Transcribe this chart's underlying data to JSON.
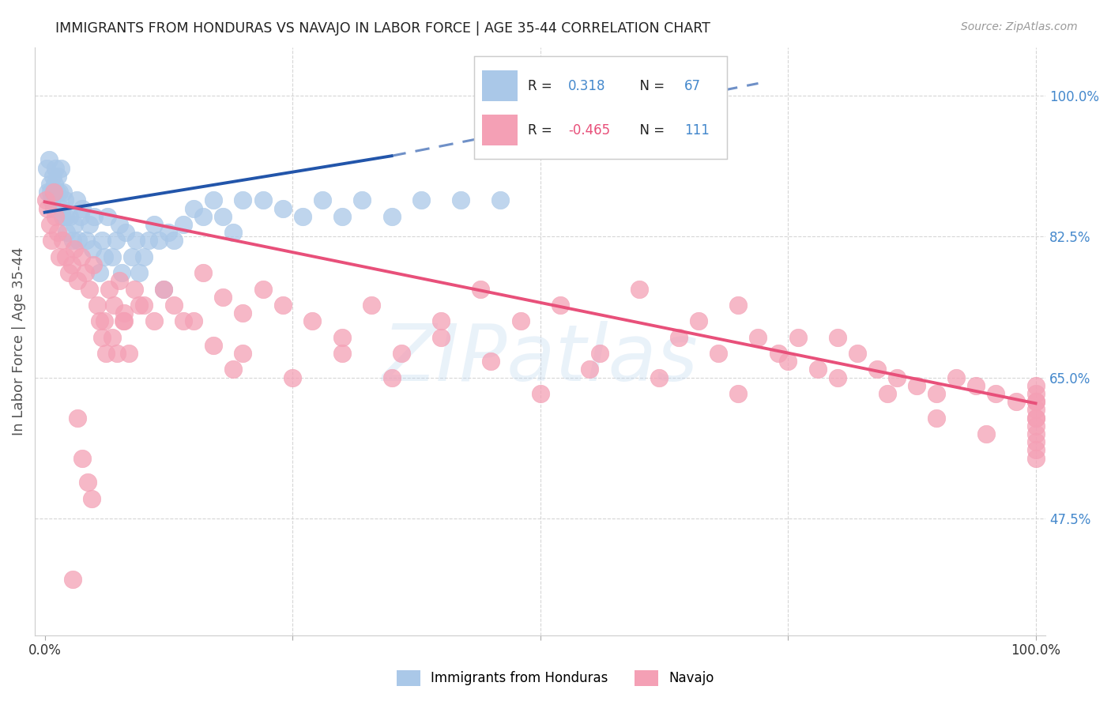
{
  "title": "IMMIGRANTS FROM HONDURAS VS NAVAJO IN LABOR FORCE | AGE 35-44 CORRELATION CHART",
  "source": "Source: ZipAtlas.com",
  "ylabel": "In Labor Force | Age 35-44",
  "xlim": [
    -0.01,
    1.01
  ],
  "ylim": [
    0.33,
    1.06
  ],
  "ytick_positions": [
    0.475,
    0.65,
    0.825,
    1.0
  ],
  "ytick_labels": [
    "47.5%",
    "65.0%",
    "82.5%",
    "100.0%"
  ],
  "watermark": "ZIPatlas",
  "legend_blue_r": "R =   0.318",
  "legend_blue_n": "N = 67",
  "legend_pink_r": "R = -0.465",
  "legend_pink_n": "N = 111",
  "blue_color": "#aac8e8",
  "pink_color": "#f4a0b5",
  "blue_line_color": "#2255aa",
  "pink_line_color": "#e8507a",
  "grid_color": "#cccccc",
  "background_color": "#ffffff",
  "title_color": "#222222",
  "axis_label_color": "#555555",
  "ytick_label_color": "#4488cc",
  "source_color": "#999999",
  "blue_scatter_x": [
    0.002,
    0.003,
    0.004,
    0.005,
    0.006,
    0.007,
    0.008,
    0.009,
    0.01,
    0.011,
    0.012,
    0.013,
    0.015,
    0.016,
    0.017,
    0.018,
    0.019,
    0.02,
    0.021,
    0.022,
    0.025,
    0.028,
    0.03,
    0.032,
    0.034,
    0.036,
    0.038,
    0.042,
    0.045,
    0.048,
    0.05,
    0.055,
    0.058,
    0.06,
    0.063,
    0.068,
    0.072,
    0.075,
    0.078,
    0.082,
    0.088,
    0.092,
    0.095,
    0.1,
    0.105,
    0.11,
    0.115,
    0.12,
    0.125,
    0.13,
    0.14,
    0.15,
    0.16,
    0.17,
    0.18,
    0.19,
    0.2,
    0.22,
    0.24,
    0.26,
    0.28,
    0.3,
    0.32,
    0.35,
    0.38,
    0.42,
    0.46
  ],
  "blue_scatter_y": [
    0.91,
    0.88,
    0.92,
    0.89,
    0.88,
    0.87,
    0.9,
    0.86,
    0.89,
    0.91,
    0.88,
    0.9,
    0.88,
    0.91,
    0.86,
    0.85,
    0.88,
    0.87,
    0.85,
    0.83,
    0.85,
    0.82,
    0.84,
    0.87,
    0.82,
    0.85,
    0.86,
    0.82,
    0.84,
    0.81,
    0.85,
    0.78,
    0.82,
    0.8,
    0.85,
    0.8,
    0.82,
    0.84,
    0.78,
    0.83,
    0.8,
    0.82,
    0.78,
    0.8,
    0.82,
    0.84,
    0.82,
    0.76,
    0.83,
    0.82,
    0.84,
    0.86,
    0.85,
    0.87,
    0.85,
    0.83,
    0.87,
    0.87,
    0.86,
    0.85,
    0.87,
    0.85,
    0.87,
    0.85,
    0.87,
    0.87,
    0.87
  ],
  "pink_scatter_x": [
    0.001,
    0.003,
    0.005,
    0.007,
    0.009,
    0.011,
    0.013,
    0.015,
    0.018,
    0.021,
    0.024,
    0.027,
    0.03,
    0.033,
    0.037,
    0.041,
    0.045,
    0.049,
    0.053,
    0.06,
    0.065,
    0.07,
    0.075,
    0.08,
    0.09,
    0.1,
    0.11,
    0.12,
    0.13,
    0.14,
    0.16,
    0.18,
    0.2,
    0.22,
    0.24,
    0.27,
    0.3,
    0.33,
    0.36,
    0.4,
    0.44,
    0.48,
    0.52,
    0.56,
    0.6,
    0.64,
    0.66,
    0.68,
    0.7,
    0.72,
    0.74,
    0.76,
    0.78,
    0.8,
    0.82,
    0.84,
    0.86,
    0.88,
    0.9,
    0.92,
    0.94,
    0.96,
    0.98,
    1.0,
    1.0,
    1.0,
    1.0,
    1.0,
    1.0,
    1.0,
    1.0,
    1.0,
    1.0,
    1.0,
    1.0,
    0.5,
    0.55,
    0.62,
    0.7,
    0.75,
    0.8,
    0.85,
    0.9,
    0.95,
    0.3,
    0.35,
    0.4,
    0.45,
    0.2,
    0.25,
    0.15,
    0.17,
    0.19,
    0.08,
    0.085,
    0.095,
    0.055,
    0.058,
    0.062,
    0.068,
    0.073,
    0.079,
    0.043,
    0.047,
    0.038,
    0.033,
    0.028
  ],
  "pink_scatter_y": [
    0.87,
    0.86,
    0.84,
    0.82,
    0.88,
    0.85,
    0.83,
    0.8,
    0.82,
    0.8,
    0.78,
    0.79,
    0.81,
    0.77,
    0.8,
    0.78,
    0.76,
    0.79,
    0.74,
    0.72,
    0.76,
    0.74,
    0.77,
    0.73,
    0.76,
    0.74,
    0.72,
    0.76,
    0.74,
    0.72,
    0.78,
    0.75,
    0.73,
    0.76,
    0.74,
    0.72,
    0.7,
    0.74,
    0.68,
    0.72,
    0.76,
    0.72,
    0.74,
    0.68,
    0.76,
    0.7,
    0.72,
    0.68,
    0.74,
    0.7,
    0.68,
    0.7,
    0.66,
    0.7,
    0.68,
    0.66,
    0.65,
    0.64,
    0.63,
    0.65,
    0.64,
    0.63,
    0.62,
    0.64,
    0.62,
    0.63,
    0.61,
    0.6,
    0.62,
    0.58,
    0.6,
    0.59,
    0.57,
    0.56,
    0.55,
    0.63,
    0.66,
    0.65,
    0.63,
    0.67,
    0.65,
    0.63,
    0.6,
    0.58,
    0.68,
    0.65,
    0.7,
    0.67,
    0.68,
    0.65,
    0.72,
    0.69,
    0.66,
    0.72,
    0.68,
    0.74,
    0.72,
    0.7,
    0.68,
    0.7,
    0.68,
    0.72,
    0.52,
    0.5,
    0.55,
    0.6,
    0.4
  ],
  "blue_line_solid": {
    "x0": 0.0,
    "x1": 0.35,
    "y0": 0.855,
    "y1": 0.925
  },
  "blue_line_dashed": {
    "x0": 0.35,
    "x1": 0.72,
    "y0": 0.925,
    "y1": 1.015
  },
  "pink_line": {
    "x0": 0.0,
    "x1": 1.0,
    "y0": 0.868,
    "y1": 0.618
  }
}
